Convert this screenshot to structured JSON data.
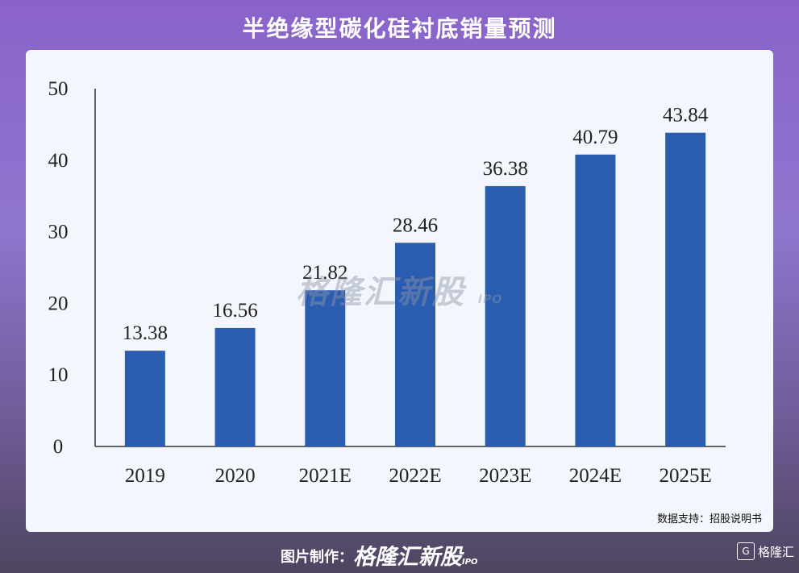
{
  "title": "半绝缘型碳化硅衬底销量预测",
  "source": "数据支持：招股说明书",
  "watermark": {
    "brand": "格隆汇新股",
    "suffix": "IPO"
  },
  "footer": {
    "credit_label": "图片制作：",
    "brand": "格隆汇新股",
    "brand_suffix": "IPO",
    "corner_brand": "格隆汇"
  },
  "chart_data": {
    "type": "bar",
    "categories": [
      "2019",
      "2020",
      "2021E",
      "2022E",
      "2023E",
      "2024E",
      "2025E"
    ],
    "values": [
      13.38,
      16.56,
      21.82,
      28.46,
      36.38,
      40.79,
      43.84
    ],
    "value_labels": [
      "13.38",
      "16.56",
      "21.82",
      "28.46",
      "36.38",
      "40.79",
      "43.84"
    ],
    "yticks": [
      "0",
      "10",
      "20",
      "30",
      "40",
      "50"
    ],
    "ylim": [
      0,
      50
    ],
    "bar_color": "#2a5cb0",
    "grid": false,
    "title": "",
    "xlabel": "",
    "ylabel": ""
  }
}
